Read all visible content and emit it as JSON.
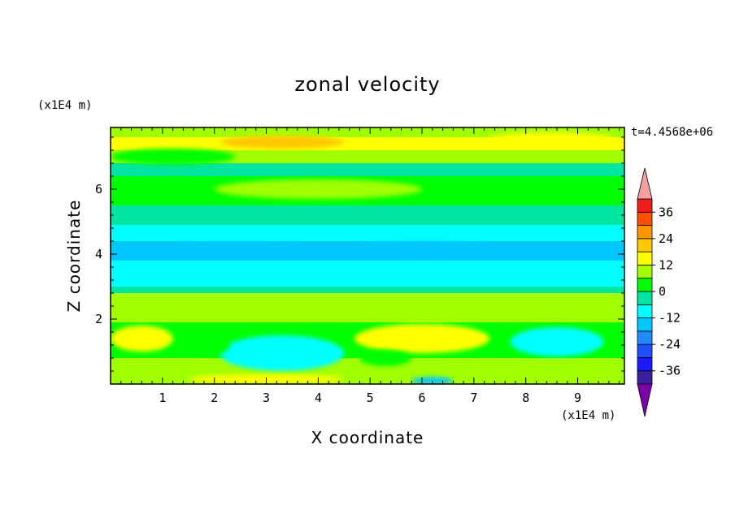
{
  "chart_data": {
    "type": "heatmap",
    "title": "zonal velocity",
    "xlabel": "X coordinate",
    "ylabel": "Z coordinate",
    "x_unit": "(x1E4 m)",
    "y_unit": "(x1E4 m)",
    "time_label": "t=4.4568e+06",
    "xlim": [
      0,
      9.9
    ],
    "ylim": [
      0,
      7.9
    ],
    "x_ticks": [
      1,
      2,
      3,
      4,
      5,
      6,
      7,
      8,
      9
    ],
    "y_ticks": [
      2,
      4,
      6
    ],
    "colorbar": {
      "levels": [
        -42,
        -36,
        -30,
        -24,
        -18,
        -12,
        -6,
        0,
        6,
        12,
        18,
        24,
        30,
        36,
        42
      ],
      "labels": [
        "36",
        "24",
        "12",
        "0",
        "-12",
        "-24",
        "-36"
      ],
      "label_values": [
        36,
        24,
        12,
        0,
        -12,
        -24,
        -36
      ],
      "colors": [
        "#7a00a8",
        "#3c1ea0",
        "#1a1aff",
        "#1e50ff",
        "#1e8cff",
        "#00c8ff",
        "#00ffff",
        "#00e6a0",
        "#00ff00",
        "#a0ff00",
        "#ffff00",
        "#ffc800",
        "#ff9600",
        "#ff5000",
        "#f01e1e",
        "#f5a0a0"
      ],
      "extend": "both"
    },
    "bands": [
      {
        "z0": 0.0,
        "z1": 0.25,
        "value": 10
      },
      {
        "z0": 0.25,
        "z1": 0.8,
        "value": 6
      },
      {
        "z0": 0.8,
        "z1": 1.9,
        "value": 3
      },
      {
        "z0": 1.9,
        "z1": 2.8,
        "value": 6
      },
      {
        "z0": 2.8,
        "z1": 3.0,
        "value": -3
      },
      {
        "z0": 3.0,
        "z1": 3.8,
        "value": -9
      },
      {
        "z0": 3.8,
        "z1": 4.4,
        "value": -13
      },
      {
        "z0": 4.4,
        "z1": 4.9,
        "value": -9
      },
      {
        "z0": 4.9,
        "z1": 5.5,
        "value": -3
      },
      {
        "z0": 5.5,
        "z1": 6.4,
        "value": 2
      },
      {
        "z0": 6.4,
        "z1": 6.8,
        "value": -3
      },
      {
        "z0": 6.8,
        "z1": 7.2,
        "value": 6
      },
      {
        "z0": 7.2,
        "z1": 7.6,
        "value": 14
      },
      {
        "z0": 7.6,
        "z1": 7.9,
        "value": 9
      }
    ],
    "blobs": [
      {
        "x": 6.0,
        "z": 1.4,
        "rx": 1.3,
        "rz": 0.45,
        "value": 16
      },
      {
        "x": 3.3,
        "z": 0.95,
        "rx": 1.2,
        "rz": 0.55,
        "value": -9
      },
      {
        "x": 8.6,
        "z": 1.3,
        "rx": 0.9,
        "rz": 0.45,
        "value": -8
      },
      {
        "x": 0.6,
        "z": 1.4,
        "rx": 0.6,
        "rz": 0.4,
        "value": 12
      },
      {
        "x": 1.9,
        "z": 1.2,
        "rx": 0.4,
        "rz": 0.3,
        "value": 2
      },
      {
        "x": 5.3,
        "z": 0.8,
        "rx": 0.5,
        "rz": 0.25,
        "value": 3
      },
      {
        "x": 6.2,
        "z": 0.1,
        "rx": 0.4,
        "rz": 0.12,
        "value": -14
      },
      {
        "x": 3.0,
        "z": 0.15,
        "rx": 1.5,
        "rz": 0.15,
        "value": 14
      },
      {
        "x": 3.3,
        "z": 7.45,
        "rx": 1.2,
        "rz": 0.2,
        "value": 22
      },
      {
        "x": 1.2,
        "z": 7.0,
        "rx": 1.2,
        "rz": 0.25,
        "value": 0
      },
      {
        "x": 4.0,
        "z": 6.0,
        "rx": 2.0,
        "rz": 0.3,
        "value": 6
      },
      {
        "x": 2.5,
        "z": 4.15,
        "rx": 1.8,
        "rz": 0.18,
        "value": -18
      },
      {
        "x": 6.0,
        "z": 4.2,
        "rx": 1.5,
        "rz": 0.15,
        "value": -16
      },
      {
        "x": 9.3,
        "z": 4.2,
        "rx": 0.6,
        "rz": 0.1,
        "value": -16
      },
      {
        "x": 8.5,
        "z": 7.55,
        "rx": 1.2,
        "rz": 0.2,
        "value": 12
      }
    ]
  }
}
